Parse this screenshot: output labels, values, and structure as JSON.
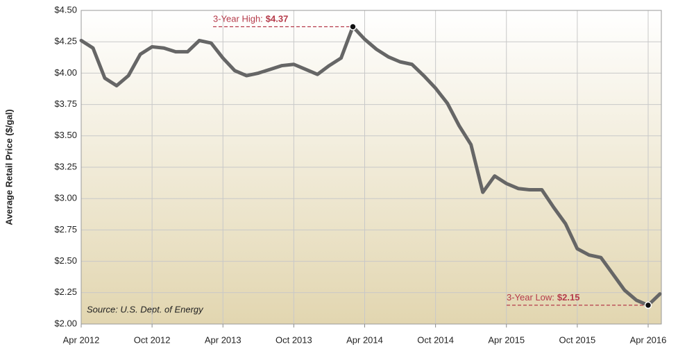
{
  "chart_data": {
    "type": "line",
    "y_label": "Average Retail Price ($/gal)",
    "source": "Source: U.S. Dept. of Energy",
    "categories": [
      "Apr 2012",
      null,
      null,
      null,
      null,
      null,
      "Oct 2012",
      null,
      null,
      null,
      null,
      null,
      "Apr 2013",
      null,
      null,
      null,
      null,
      null,
      "Oct 2013",
      null,
      null,
      null,
      null,
      null,
      "Apr 2014",
      null,
      null,
      null,
      null,
      null,
      "Oct 2014",
      null,
      null,
      null,
      null,
      null,
      "Apr 2015",
      null,
      null,
      null,
      null,
      null,
      "Oct 2015",
      null,
      null,
      null,
      null,
      null,
      "Apr 2016",
      null
    ],
    "series": [
      {
        "name": "Average Retail Price",
        "color": "#666666",
        "values": [
          4.26,
          4.2,
          3.96,
          3.9,
          3.98,
          4.15,
          4.21,
          4.2,
          4.17,
          4.17,
          4.26,
          4.24,
          4.12,
          4.02,
          3.98,
          4.0,
          4.03,
          4.06,
          4.07,
          4.03,
          3.99,
          4.06,
          4.12,
          4.37,
          4.27,
          4.19,
          4.13,
          4.09,
          4.07,
          3.98,
          3.88,
          3.76,
          3.58,
          3.43,
          3.05,
          3.18,
          3.12,
          3.08,
          3.07,
          3.07,
          2.93,
          2.8,
          2.6,
          2.55,
          2.53,
          2.4,
          2.27,
          2.19,
          2.15,
          2.24
        ]
      }
    ],
    "annotations": [
      {
        "text": "3-Year High:",
        "value_label": "$4.37"
      },
      {
        "text": "3-Year Low:",
        "value_label": "$2.15"
      }
    ],
    "annotation_color": "#b53a4a",
    "ylim": [
      2.0,
      4.5
    ],
    "yticks": [
      {
        "value": 2.0,
        "label": "$2.00"
      },
      {
        "value": 2.25,
        "label": "$2.25"
      },
      {
        "value": 2.5,
        "label": "$2.50"
      },
      {
        "value": 2.75,
        "label": "$2.75"
      },
      {
        "value": 3.0,
        "label": "$3.00"
      },
      {
        "value": 3.25,
        "label": "$3.25"
      },
      {
        "value": 3.5,
        "label": "$3.50"
      },
      {
        "value": 3.75,
        "label": "$3.75"
      },
      {
        "value": 4.0,
        "label": "$4.00"
      },
      {
        "value": 4.25,
        "label": "$4.25"
      },
      {
        "value": 4.5,
        "label": "$4.50"
      }
    ],
    "grid": true
  }
}
